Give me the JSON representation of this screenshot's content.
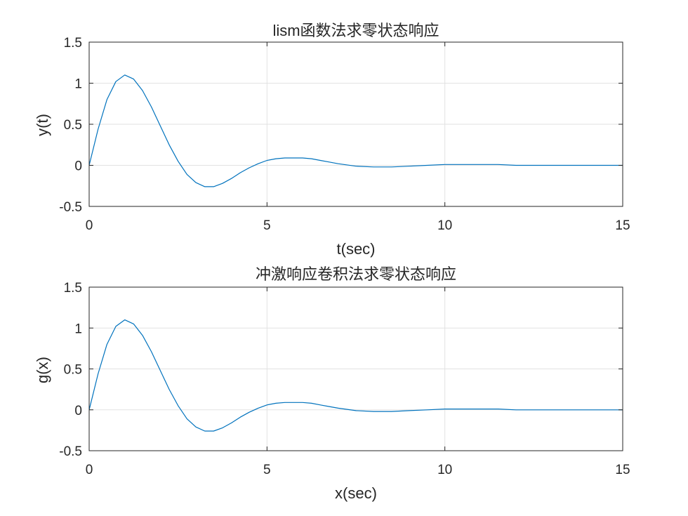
{
  "chart_data": [
    {
      "type": "line",
      "title": "lism函数法求零状态响应",
      "xlabel": "t(sec)",
      "ylabel": "y(t)",
      "xlim": [
        0,
        15
      ],
      "ylim": [
        -0.5,
        1.5
      ],
      "xticks": [
        "0",
        "5",
        "10",
        "15"
      ],
      "yticks": [
        "-0.5",
        "0",
        "0.5",
        "1",
        "1.5"
      ],
      "grid": true,
      "line_color": "#0072BD",
      "series": [
        {
          "x": [
            0,
            0.25,
            0.5,
            0.75,
            1.0,
            1.25,
            1.5,
            1.75,
            2.0,
            2.25,
            2.5,
            2.75,
            3.0,
            3.25,
            3.5,
            3.75,
            4.0,
            4.25,
            4.5,
            4.75,
            5.0,
            5.25,
            5.5,
            5.75,
            6.0,
            6.25,
            6.5,
            6.75,
            7.0,
            7.5,
            8.0,
            8.5,
            9.0,
            9.5,
            10.0,
            10.5,
            11.0,
            11.5,
            12.0,
            12.5,
            13.0,
            13.5,
            14.0,
            14.5,
            15.0
          ],
          "y": [
            0,
            0.44,
            0.8,
            1.02,
            1.1,
            1.05,
            0.91,
            0.71,
            0.48,
            0.25,
            0.05,
            -0.11,
            -0.21,
            -0.26,
            -0.26,
            -0.22,
            -0.16,
            -0.09,
            -0.03,
            0.02,
            0.06,
            0.08,
            0.09,
            0.09,
            0.09,
            0.08,
            0.06,
            0.04,
            0.02,
            -0.01,
            -0.02,
            -0.02,
            -0.01,
            0.0,
            0.01,
            0.01,
            0.01,
            0.01,
            0.0,
            0.0,
            0.0,
            0.0,
            0.0,
            0.0,
            0.0
          ]
        }
      ]
    },
    {
      "type": "line",
      "title": "冲激响应卷积法求零状态响应",
      "xlabel": "x(sec)",
      "ylabel": "g(x)",
      "xlim": [
        0,
        15
      ],
      "ylim": [
        -0.5,
        1.5
      ],
      "xticks": [
        "0",
        "5",
        "10",
        "15"
      ],
      "yticks": [
        "-0.5",
        "0",
        "0.5",
        "1",
        "1.5"
      ],
      "grid": true,
      "line_color": "#0072BD",
      "series": [
        {
          "x": [
            0,
            0.25,
            0.5,
            0.75,
            1.0,
            1.25,
            1.5,
            1.75,
            2.0,
            2.25,
            2.5,
            2.75,
            3.0,
            3.25,
            3.5,
            3.75,
            4.0,
            4.25,
            4.5,
            4.75,
            5.0,
            5.25,
            5.5,
            5.75,
            6.0,
            6.25,
            6.5,
            6.75,
            7.0,
            7.5,
            8.0,
            8.5,
            9.0,
            9.5,
            10.0,
            10.5,
            11.0,
            11.5,
            12.0,
            12.5,
            13.0,
            13.5,
            14.0,
            14.5,
            15.0
          ],
          "y": [
            0,
            0.44,
            0.8,
            1.02,
            1.1,
            1.05,
            0.91,
            0.71,
            0.48,
            0.25,
            0.05,
            -0.11,
            -0.21,
            -0.26,
            -0.26,
            -0.22,
            -0.16,
            -0.09,
            -0.03,
            0.02,
            0.06,
            0.08,
            0.09,
            0.09,
            0.09,
            0.08,
            0.06,
            0.04,
            0.02,
            -0.01,
            -0.02,
            -0.02,
            -0.01,
            0.0,
            0.01,
            0.01,
            0.01,
            0.01,
            0.0,
            0.0,
            0.0,
            0.0,
            0.0,
            0.0,
            0.0
          ]
        }
      ]
    }
  ]
}
